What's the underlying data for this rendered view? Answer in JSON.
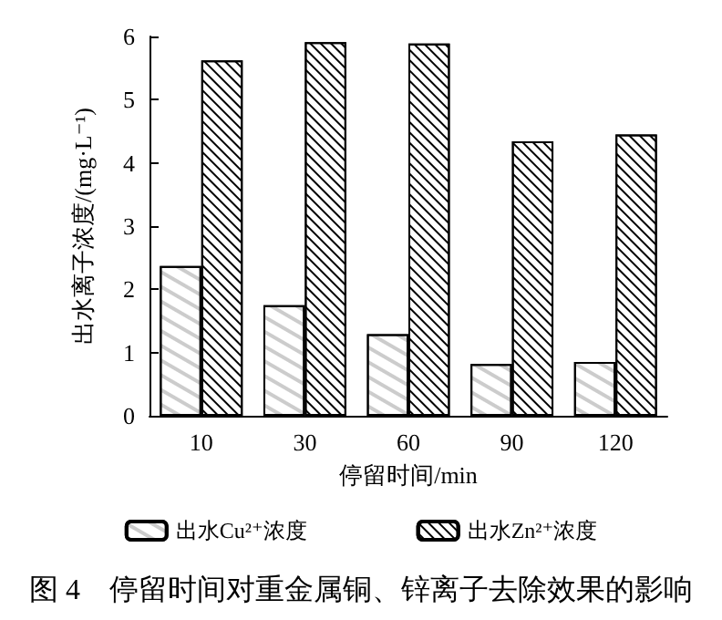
{
  "chart_data": {
    "type": "bar",
    "categories": [
      "10",
      "30",
      "60",
      "90",
      "120"
    ],
    "series": [
      {
        "name": "出水Cu²⁺浓度",
        "color": "#ffffff",
        "values": [
          2.37,
          1.75,
          1.29,
          0.82,
          0.85
        ]
      },
      {
        "name": "出水Zn²⁺浓度",
        "color": "#ffffff",
        "values": [
          5.62,
          5.91,
          5.89,
          4.34,
          4.45
        ]
      }
    ],
    "xlabel": "停留时间/min",
    "ylabel": "出水离子浓度/(mg·L⁻¹)",
    "ylim": [
      0,
      6
    ],
    "yticks": [
      0,
      1,
      2,
      3,
      4,
      5,
      6
    ],
    "grid": false,
    "legend": "bottom",
    "annotations": [
      "图 4　停留时间对重金属铜、锌离子去除效果的影响"
    ]
  }
}
